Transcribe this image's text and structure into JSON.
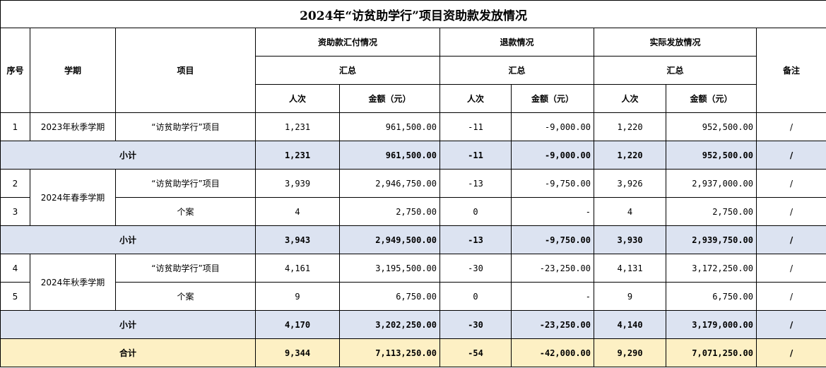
{
  "title": "2024年“访贫助学行”项目资助款发放情况",
  "headers": {
    "seq": "序号",
    "semester": "学期",
    "project": "项目",
    "payment_group": "资助款汇付情况",
    "refund_group": "退款情况",
    "actual_group": "实际发放情况",
    "summary": "汇总",
    "persons": "人次",
    "amount": "金额（元）",
    "remark": "备注"
  },
  "rows": {
    "r1": {
      "seq": "1",
      "semester": "2023年秋季学期",
      "project": "“访贫助学行”项目",
      "pay_persons": "1,231",
      "pay_amount": "961,500.00",
      "ref_persons": "-11",
      "ref_amount": "-9,000.00",
      "act_persons": "1,220",
      "act_amount": "952,500.00",
      "remark": "/"
    },
    "s1": {
      "label": "小计",
      "pay_persons": "1,231",
      "pay_amount": "961,500.00",
      "ref_persons": "-11",
      "ref_amount": "-9,000.00",
      "act_persons": "1,220",
      "act_amount": "952,500.00",
      "remark": "/"
    },
    "r2": {
      "seq": "2",
      "semester": "2024年春季学期",
      "project": "“访贫助学行”项目",
      "pay_persons": "3,939",
      "pay_amount": "2,946,750.00",
      "ref_persons": "-13",
      "ref_amount": "-9,750.00",
      "act_persons": "3,926",
      "act_amount": "2,937,000.00",
      "remark": "/"
    },
    "r3": {
      "seq": "3",
      "project": "个案",
      "pay_persons": "4",
      "pay_amount": "2,750.00",
      "ref_persons": "0",
      "ref_amount": "-",
      "act_persons": "4",
      "act_amount": "2,750.00",
      "remark": "/"
    },
    "s2": {
      "label": "小计",
      "pay_persons": "3,943",
      "pay_amount": "2,949,500.00",
      "ref_persons": "-13",
      "ref_amount": "-9,750.00",
      "act_persons": "3,930",
      "act_amount": "2,939,750.00",
      "remark": "/"
    },
    "r4": {
      "seq": "4",
      "semester": "2024年秋季学期",
      "project": "“访贫助学行”项目",
      "pay_persons": "4,161",
      "pay_amount": "3,195,500.00",
      "ref_persons": "-30",
      "ref_amount": "-23,250.00",
      "act_persons": "4,131",
      "act_amount": "3,172,250.00",
      "remark": "/"
    },
    "r5": {
      "seq": "5",
      "project": "个案",
      "pay_persons": "9",
      "pay_amount": "6,750.00",
      "ref_persons": "0",
      "ref_amount": "-",
      "act_persons": "9",
      "act_amount": "6,750.00",
      "remark": "/"
    },
    "s3": {
      "label": "小计",
      "pay_persons": "4,170",
      "pay_amount": "3,202,250.00",
      "ref_persons": "-30",
      "ref_amount": "-23,250.00",
      "act_persons": "4,140",
      "act_amount": "3,179,000.00",
      "remark": "/"
    },
    "total": {
      "label": "合计",
      "pay_persons": "9,344",
      "pay_amount": "7,113,250.00",
      "ref_persons": "-54",
      "ref_amount": "-42,000.00",
      "act_persons": "9,290",
      "act_amount": "7,071,250.00",
      "remark": "/"
    }
  },
  "colors": {
    "subtotal_bg": "#dce3f1",
    "total_bg": "#fdf0c4",
    "border": "#000000"
  }
}
